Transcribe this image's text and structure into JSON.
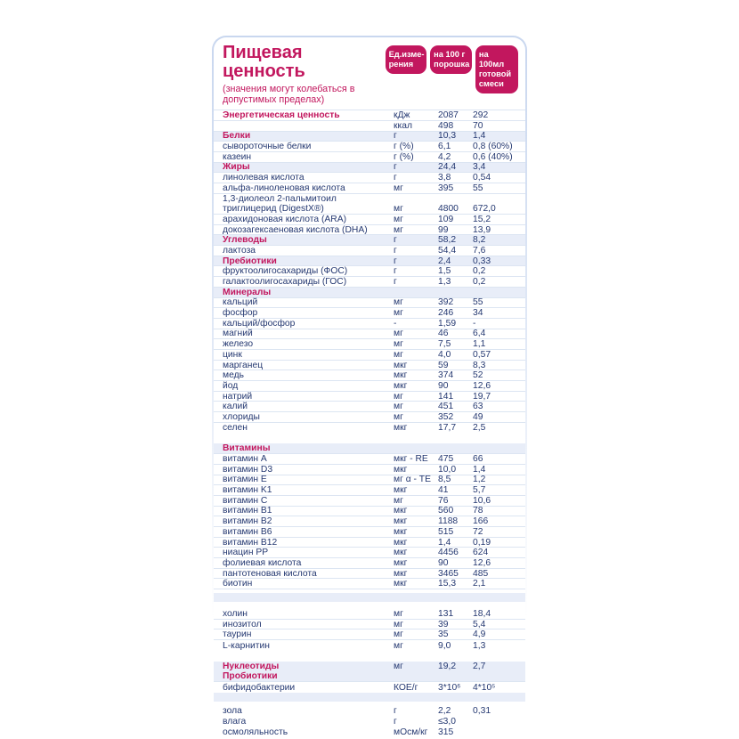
{
  "colors": {
    "accent_pink": "#c2175e",
    "text_navy": "#243871",
    "section_stripe": "#e8edf8",
    "divider": "#dce5f2",
    "card_border": "#c9d7ef"
  },
  "header": {
    "title": "Пищевая ценность",
    "subtitle": "(значения могут колебаться в допустимых пределах)",
    "columns": [
      "Ед.изме-\nрения",
      "на 100 г\nпорошка",
      "на 100мл\nготовой\nсмеси"
    ]
  },
  "table": {
    "rows": [
      {
        "kind": "pink",
        "label": "Энергетическая ценность",
        "unit": "кДж",
        "per100g": "2087",
        "per100ml": "292"
      },
      {
        "kind": "item",
        "label": "",
        "unit": "ккал",
        "per100g": "498",
        "per100ml": "70"
      },
      {
        "kind": "section",
        "label": "Белки",
        "unit": "г",
        "per100g": "10,3",
        "per100ml": "1,4"
      },
      {
        "kind": "item",
        "label": "сывороточные белки",
        "unit": "г (%)",
        "per100g": "6,1",
        "per100ml": "0,8 (60%)"
      },
      {
        "kind": "item",
        "label": "казеин",
        "unit": "г (%)",
        "per100g": "4,2",
        "per100ml": "0,6 (40%)"
      },
      {
        "kind": "section",
        "label": "Жиры",
        "unit": "г",
        "per100g": "24,4",
        "per100ml": "3,4"
      },
      {
        "kind": "item",
        "label": "линолевая кислота",
        "unit": "г",
        "per100g": "3,8",
        "per100ml": "0,54"
      },
      {
        "kind": "item",
        "label": "альфа-линоленовая кислота",
        "unit": "мг",
        "per100g": "395",
        "per100ml": "55"
      },
      {
        "kind": "item",
        "nodiv": true,
        "label": "1,3-диолеол 2-пальмитоил",
        "unit": "",
        "per100g": "",
        "per100ml": ""
      },
      {
        "kind": "item",
        "label": "триглицерид (DigestX®)",
        "unit": "мг",
        "per100g": "4800",
        "per100ml": "672,0"
      },
      {
        "kind": "item",
        "label": "арахидоновая кислота (ARA)",
        "unit": "мг",
        "per100g": "109",
        "per100ml": "15,2"
      },
      {
        "kind": "item",
        "label": "докозагексаеновая кислота (DHA)",
        "unit": "мг",
        "per100g": "99",
        "per100ml": "13,9"
      },
      {
        "kind": "section",
        "label": "Углеводы",
        "unit": "г",
        "per100g": "58,2",
        "per100ml": "8,2"
      },
      {
        "kind": "item",
        "label": "лактоза",
        "unit": "г",
        "per100g": "54,4",
        "per100ml": "7,6"
      },
      {
        "kind": "section",
        "label": "Пребиотики",
        "unit": "г",
        "per100g": "2,4",
        "per100ml": "0,33"
      },
      {
        "kind": "item",
        "label": "фруктоолигосахариды (ФОС)",
        "unit": "г",
        "per100g": "1,5",
        "per100ml": "0,2"
      },
      {
        "kind": "item",
        "label": "галактоолигосахариды (ГОС)",
        "unit": "г",
        "per100g": "1,3",
        "per100ml": "0,2"
      },
      {
        "kind": "section",
        "label": "Минералы",
        "unit": "",
        "per100g": "",
        "per100ml": ""
      },
      {
        "kind": "item",
        "label": "кальций",
        "unit": "мг",
        "per100g": "392",
        "per100ml": "55"
      },
      {
        "kind": "item",
        "label": "фосфор",
        "unit": "мг",
        "per100g": "246",
        "per100ml": "34"
      },
      {
        "kind": "item",
        "label": "кальций/фосфор",
        "unit": "-",
        "per100g": "1,59",
        "per100ml": "-"
      },
      {
        "kind": "item",
        "label": "магний",
        "unit": "мг",
        "per100g": "46",
        "per100ml": "6,4"
      },
      {
        "kind": "item",
        "label": "железо",
        "unit": "мг",
        "per100g": "7,5",
        "per100ml": "1,1"
      },
      {
        "kind": "item",
        "label": "цинк",
        "unit": "мг",
        "per100g": "4,0",
        "per100ml": "0,57"
      },
      {
        "kind": "item",
        "label": "марганец",
        "unit": "мкг",
        "per100g": "59",
        "per100ml": "8,3"
      },
      {
        "kind": "item",
        "label": "медь",
        "unit": "мкг",
        "per100g": "374",
        "per100ml": "52"
      },
      {
        "kind": "item",
        "label": "йод",
        "unit": "мкг",
        "per100g": "90",
        "per100ml": "12,6"
      },
      {
        "kind": "item",
        "label": "натрий",
        "unit": "мг",
        "per100g": "141",
        "per100ml": "19,7"
      },
      {
        "kind": "item",
        "label": "калий",
        "unit": "мг",
        "per100g": "451",
        "per100ml": "63"
      },
      {
        "kind": "item",
        "label": "хлориды",
        "unit": "мг",
        "per100g": "352",
        "per100ml": "49"
      },
      {
        "kind": "item",
        "nodiv": true,
        "label": "селен",
        "unit": "мкг",
        "per100g": "17,7",
        "per100ml": "2,5"
      },
      {
        "kind": "gap",
        "h": 12
      },
      {
        "kind": "section",
        "label": "Витамины",
        "unit": "",
        "per100g": "",
        "per100ml": ""
      },
      {
        "kind": "item",
        "label": "витамин A",
        "unit": "мкг - RE",
        "per100g": "475",
        "per100ml": "66"
      },
      {
        "kind": "item",
        "label": "витамин D3",
        "unit": "мкг",
        "per100g": "10,0",
        "per100ml": "1,4"
      },
      {
        "kind": "item",
        "label": "витамин E",
        "unit": "мг α - TE",
        "per100g": "8,5",
        "per100ml": "1,2"
      },
      {
        "kind": "item",
        "label": "витамин K1",
        "unit": "мкг",
        "per100g": "41",
        "per100ml": "5,7"
      },
      {
        "kind": "item",
        "label": "витамин C",
        "unit": "мг",
        "per100g": "76",
        "per100ml": "10,6"
      },
      {
        "kind": "item",
        "label": "витамин B1",
        "unit": "мкг",
        "per100g": "560",
        "per100ml": "78"
      },
      {
        "kind": "item",
        "label": "витамин B2",
        "unit": "мкг",
        "per100g": "1188",
        "per100ml": "166"
      },
      {
        "kind": "item",
        "label": "витамин B6",
        "unit": "мкг",
        "per100g": "515",
        "per100ml": "72"
      },
      {
        "kind": "item",
        "label": "витамин B12",
        "unit": "мкг",
        "per100g": "1,4",
        "per100ml": "0,19"
      },
      {
        "kind": "item",
        "label": "ниацин PP",
        "unit": "мкг",
        "per100g": "4456",
        "per100ml": "624"
      },
      {
        "kind": "item",
        "label": "фолиевая кислота",
        "unit": "мкг",
        "per100g": "90",
        "per100ml": "12,6"
      },
      {
        "kind": "item",
        "label": "пантотеновая кислота",
        "unit": "мкг",
        "per100g": "3465",
        "per100ml": "485"
      },
      {
        "kind": "item",
        "label": "биотин",
        "unit": "мкг",
        "per100g": "15,3",
        "per100ml": "2,1"
      },
      {
        "kind": "gap",
        "h": 4
      },
      {
        "kind": "stripe_gap",
        "h": 10
      },
      {
        "kind": "gap",
        "h": 8
      },
      {
        "kind": "item",
        "label": "холин",
        "unit": "мг",
        "per100g": "131",
        "per100ml": "18,4"
      },
      {
        "kind": "item",
        "label": "инозитол",
        "unit": "мг",
        "per100g": "39",
        "per100ml": "5,4"
      },
      {
        "kind": "item",
        "label": "таурин",
        "unit": "мг",
        "per100g": "35",
        "per100ml": "4,9"
      },
      {
        "kind": "item",
        "nodiv": true,
        "label": "L-карнитин",
        "unit": "мг",
        "per100g": "9,0",
        "per100ml": "1,3"
      },
      {
        "kind": "gap",
        "h": 12
      },
      {
        "kind": "section",
        "nodiv": true,
        "label": "Нуклеотиды",
        "unit": "мг",
        "per100g": "19,2",
        "per100ml": "2,7"
      },
      {
        "kind": "section",
        "label": "Пробиотики",
        "unit": "",
        "per100g": "",
        "per100ml": ""
      },
      {
        "kind": "item",
        "nodiv": true,
        "label": "бифидобактерии",
        "unit": "КОЕ/г",
        "per100g": "3*10⁶",
        "per100ml": "4*10⁵"
      },
      {
        "kind": "stripe_gap",
        "h": 10
      },
      {
        "kind": "gap",
        "h": 5
      },
      {
        "kind": "item",
        "nodiv": true,
        "label": "зола",
        "unit": "г",
        "per100g": "2,2",
        "per100ml": "0,31"
      },
      {
        "kind": "item",
        "nodiv": true,
        "label": "влага",
        "unit": "г",
        "per100g": "≤3,0",
        "per100ml": ""
      },
      {
        "kind": "item",
        "nodiv": true,
        "label": "осмоляльность",
        "unit": "мОсм/кг",
        "per100g": "315",
        "per100ml": ""
      }
    ]
  }
}
